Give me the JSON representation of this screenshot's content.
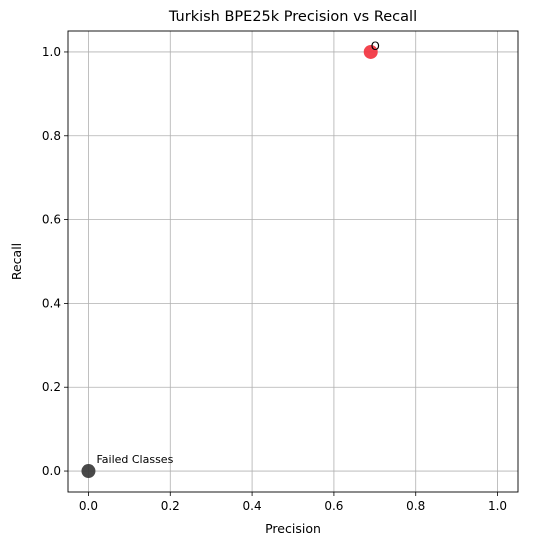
{
  "chart_data": {
    "type": "scatter",
    "title": "Turkish BPE25k Precision vs Recall",
    "xlabel": "Precision",
    "ylabel": "Recall",
    "xlim": [
      -0.05,
      1.05
    ],
    "ylim": [
      -0.05,
      1.05
    ],
    "xticks": [
      0.0,
      0.2,
      0.4,
      0.6,
      0.8,
      1.0
    ],
    "yticks": [
      0.0,
      0.2,
      0.4,
      0.6,
      0.8,
      1.0
    ],
    "xtick_labels": [
      "0.0",
      "0.2",
      "0.4",
      "0.6",
      "0.8",
      "1.0"
    ],
    "ytick_labels": [
      "0.0",
      "0.2",
      "0.4",
      "0.6",
      "0.8",
      "1.0"
    ],
    "grid": true,
    "points": [
      {
        "x": 0.69,
        "y": 1.0,
        "label": "O",
        "color": "#f2333f"
      },
      {
        "x": 0.0,
        "y": 0.0,
        "label": "Failed Classes",
        "color": "#3a3a3a"
      }
    ]
  }
}
